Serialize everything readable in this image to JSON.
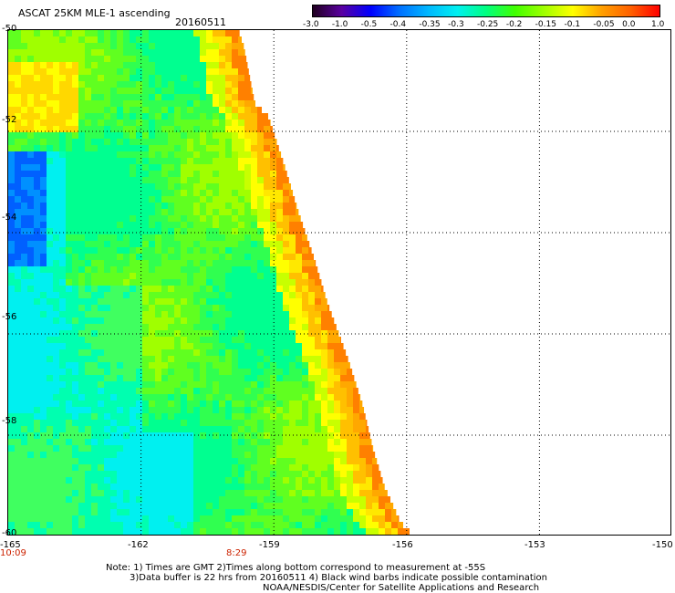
{
  "header": {
    "title": "ASCAT 25KM MLE-1 ascending",
    "date": "20160511"
  },
  "colorbar": {
    "labels": [
      "-3.0",
      "-1.0",
      "-0.5",
      "-0.4",
      "-0.35",
      "-0.3",
      "-0.25",
      "-0.2",
      "-0.15",
      "-0.1",
      "-0.05",
      "0.0",
      "1.0"
    ],
    "colors": [
      "#200020",
      "#5a00a0",
      "#0000ff",
      "#0070ff",
      "#00b8ff",
      "#00f0f0",
      "#00ff80",
      "#40ff00",
      "#a0ff00",
      "#ffff00",
      "#ffa000",
      "#ff6000",
      "#ff0000"
    ]
  },
  "axes": {
    "lat_labels": [
      "-50",
      "-52",
      "-54",
      "-56",
      "-58",
      "-60"
    ],
    "lon_labels": [
      "-165",
      "-162",
      "-159",
      "-156",
      "-153",
      "-150"
    ],
    "lat_range": [
      -60,
      -50
    ],
    "lon_range": [
      -165,
      -150
    ]
  },
  "times": [
    {
      "label": "10:09",
      "lon": -165
    },
    {
      "label": "8:29",
      "lon": -160.2
    }
  ],
  "notes": [
    "Note: 1) Times are GMT 2)Times along bottom correspond to measurement at -55S",
    "3)Data buffer is 22 hrs from 20160511 4) Black wind barbs indicate possible contamination",
    "NOAA/NESDIS/Center for Satellite Applications and Research"
  ]
}
